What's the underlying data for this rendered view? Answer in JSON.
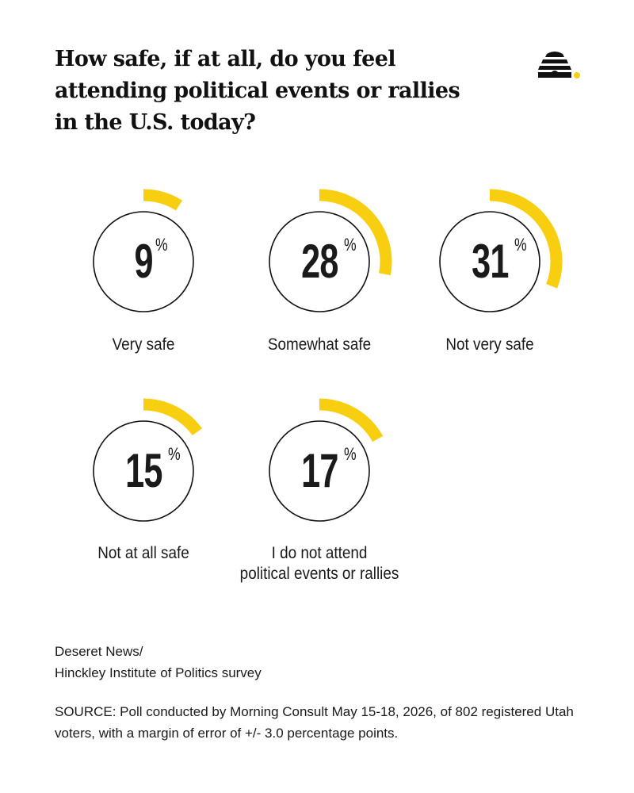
{
  "chart_data": {
    "type": "pie",
    "title": "How safe, if at all, do you feel attending political events or rallies in the U.S. today?",
    "categories": [
      "Very safe",
      "Somewhat safe",
      "Not very safe",
      "Not at all safe",
      "I do not attend political events or rallies"
    ],
    "values": [
      9,
      28,
      31,
      15,
      17
    ],
    "unit": "%",
    "accent_color": "#f7cf10",
    "ring_color": "#111111",
    "items": [
      {
        "label_lines": [
          "Very safe"
        ],
        "value": "9",
        "unit": "%"
      },
      {
        "label_lines": [
          "Somewhat safe"
        ],
        "value": "28",
        "unit": "%"
      },
      {
        "label_lines": [
          "Not very safe"
        ],
        "value": "31",
        "unit": "%"
      },
      {
        "label_lines": [
          "Not at all safe"
        ],
        "value": "15",
        "unit": "%"
      },
      {
        "label_lines": [
          "I do not attend",
          "political events or rallies"
        ],
        "value": "17",
        "unit": "%"
      }
    ]
  },
  "credit": {
    "line1": "Deseret News/",
    "line2": "Hinckley Institute of Politics survey"
  },
  "source": "SOURCE: Poll conducted by Morning Consult May 15-18, 2026, of 802 registered Utah voters, with a margin of error of +/- 3.0 percentage points.",
  "logo_icon": "beehive-icon"
}
